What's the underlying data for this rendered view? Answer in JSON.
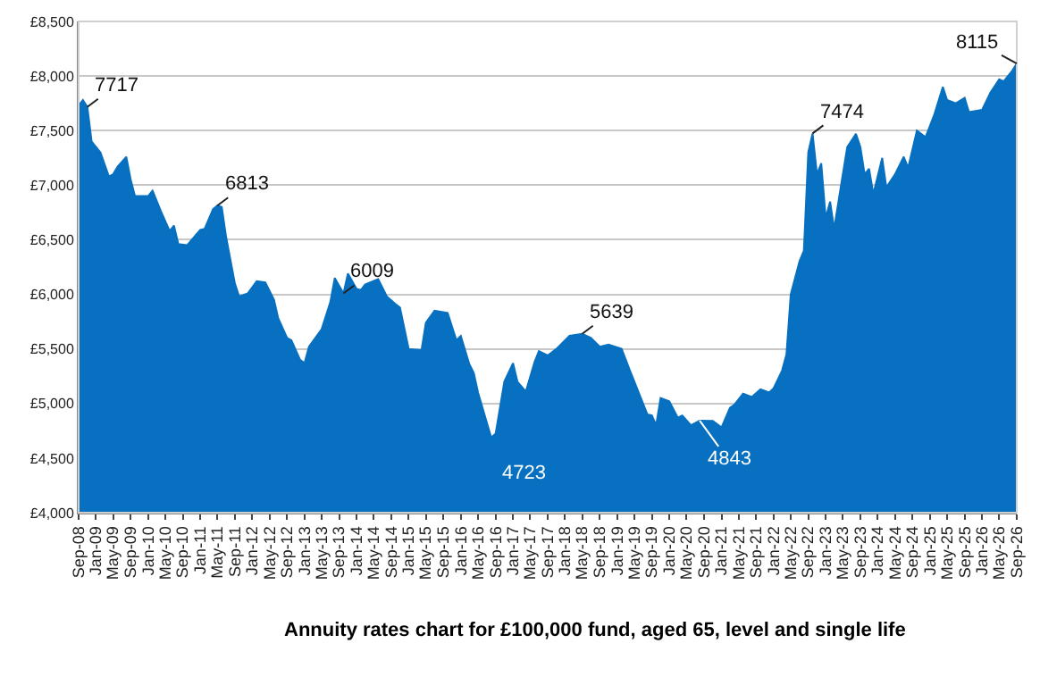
{
  "chart_data": {
    "type": "area",
    "title": "Annuity rates chart for £100,000 fund, aged 65, level and single life",
    "series": [
      {
        "color": "#0770c0",
        "x": [
          "2008-09",
          "2008-10",
          "2008-11",
          "2008-12",
          "2009-02",
          "2009-04",
          "2009-05",
          "2009-06",
          "2009-08",
          "2009-09",
          "2009-10",
          "2010-01",
          "2010-02",
          "2010-04",
          "2010-06",
          "2010-07",
          "2010-08",
          "2010-10",
          "2011-01",
          "2011-02",
          "2011-04",
          "2011-05",
          "2011-06",
          "2011-07",
          "2011-09",
          "2011-10",
          "2011-12",
          "2012-02",
          "2012-04",
          "2012-06",
          "2012-07",
          "2012-09",
          "2012-10",
          "2012-12",
          "2013-01",
          "2013-02",
          "2013-05",
          "2013-07",
          "2013-08",
          "2013-10",
          "2013-11",
          "2014-01",
          "2014-02",
          "2014-03",
          "2014-06",
          "2014-08",
          "2014-10",
          "2014-11",
          "2015-01",
          "2015-04",
          "2015-05",
          "2015-07",
          "2015-10",
          "2015-12",
          "2016-01",
          "2016-03",
          "2016-04",
          "2016-05",
          "2016-08",
          "2016-09",
          "2016-11",
          "2017-01",
          "2017-02",
          "2017-04",
          "2017-06",
          "2017-07",
          "2017-09",
          "2017-11",
          "2018-02",
          "2018-05",
          "2018-07",
          "2018-09",
          "2018-11",
          "2019-02",
          "2019-04",
          "2019-06",
          "2019-08",
          "2019-09",
          "2019-10",
          "2019-11",
          "2020-01",
          "2020-03",
          "2020-04",
          "2020-06",
          "2020-08",
          "2020-11",
          "2021-01",
          "2021-03",
          "2021-04",
          "2021-06",
          "2021-08",
          "2021-10",
          "2021-12",
          "2022-01",
          "2022-03",
          "2022-04",
          "2022-05",
          "2022-07",
          "2022-08",
          "2022-09",
          "2022-10",
          "2022-11",
          "2022-12",
          "2023-01",
          "2023-02",
          "2023-03",
          "2023-05",
          "2023-06",
          "2023-08",
          "2023-09",
          "2023-10",
          "2023-11",
          "2023-12",
          "2024-02",
          "2024-03",
          "2024-05",
          "2024-07",
          "2024-08",
          "2024-10",
          "2024-12",
          "2025-02",
          "2025-04",
          "2025-05",
          "2025-07",
          "2025-09",
          "2025-10",
          "2026-01",
          "2026-03",
          "2026-05",
          "2026-06",
          "2026-08",
          "2026-09"
        ],
        "values": [
          7730,
          7780,
          7717,
          7400,
          7300,
          7080,
          7100,
          7170,
          7260,
          7050,
          6900,
          6900,
          6950,
          6760,
          6580,
          6630,
          6460,
          6450,
          6590,
          6600,
          6780,
          6813,
          6800,
          6530,
          6100,
          5980,
          6010,
          6120,
          6110,
          5950,
          5780,
          5600,
          5580,
          5400,
          5370,
          5520,
          5680,
          5930,
          6150,
          6009,
          6190,
          6050,
          6040,
          6090,
          6140,
          5980,
          5910,
          5880,
          5500,
          5490,
          5740,
          5850,
          5830,
          5580,
          5620,
          5360,
          5280,
          5100,
          4690,
          4723,
          5200,
          5370,
          5200,
          5110,
          5380,
          5480,
          5440,
          5500,
          5620,
          5639,
          5600,
          5520,
          5540,
          5500,
          5300,
          5100,
          4900,
          4890,
          4800,
          5050,
          5020,
          4870,
          4890,
          4800,
          4843,
          4840,
          4780,
          4960,
          4990,
          5090,
          5060,
          5130,
          5100,
          5140,
          5300,
          5450,
          6000,
          6300,
          6400,
          7300,
          7474,
          7100,
          7200,
          6700,
          6850,
          6600,
          7100,
          7350,
          7470,
          7350,
          7100,
          7150,
          6920,
          7250,
          6980,
          7100,
          7260,
          7160,
          7500,
          7440,
          7650,
          7900,
          7780,
          7750,
          7800,
          7670,
          7690,
          7850,
          7970,
          7950,
          8050,
          8115
        ]
      }
    ],
    "annotations": [
      {
        "text": "7717",
        "x": "2008-11",
        "y": 7717
      },
      {
        "text": "6813",
        "x": "2011-05",
        "y": 6813
      },
      {
        "text": "6009",
        "x": "2013-10",
        "y": 6009
      },
      {
        "text": "4723",
        "x": "2016-09",
        "y": 4723
      },
      {
        "text": "5639",
        "x": "2018-05",
        "y": 5639
      },
      {
        "text": "4843",
        "x": "2020-08",
        "y": 4843
      },
      {
        "text": "7474",
        "x": "2022-10",
        "y": 7474
      },
      {
        "text": "8115",
        "x": "2026-09",
        "y": 8115
      }
    ],
    "xlim": [
      "2008-09",
      "2026-09"
    ],
    "xticks": [
      {
        "value": "2008-09",
        "label": "Sep-08"
      },
      {
        "value": "2009-01",
        "label": "Jan-09"
      },
      {
        "value": "2009-05",
        "label": "May-09"
      },
      {
        "value": "2009-09",
        "label": "Sep-09"
      },
      {
        "value": "2010-01",
        "label": "Jan-10"
      },
      {
        "value": "2010-05",
        "label": "May-10"
      },
      {
        "value": "2010-09",
        "label": "Sep-10"
      },
      {
        "value": "2011-01",
        "label": "Jan-11"
      },
      {
        "value": "2011-05",
        "label": "May-11"
      },
      {
        "value": "2011-09",
        "label": "Sep-11"
      },
      {
        "value": "2012-01",
        "label": "Jan-12"
      },
      {
        "value": "2012-05",
        "label": "May-12"
      },
      {
        "value": "2012-09",
        "label": "Sep-12"
      },
      {
        "value": "2013-01",
        "label": "Jan-13"
      },
      {
        "value": "2013-05",
        "label": "May-13"
      },
      {
        "value": "2013-09",
        "label": "Sep-13"
      },
      {
        "value": "2014-01",
        "label": "Jan-14"
      },
      {
        "value": "2014-05",
        "label": "May-14"
      },
      {
        "value": "2014-09",
        "label": "Sep-14"
      },
      {
        "value": "2015-01",
        "label": "Jan-15"
      },
      {
        "value": "2015-05",
        "label": "May-15"
      },
      {
        "value": "2015-09",
        "label": "Sep-15"
      },
      {
        "value": "2016-01",
        "label": "Jan-16"
      },
      {
        "value": "2016-05",
        "label": "May-16"
      },
      {
        "value": "2016-09",
        "label": "Sep-16"
      },
      {
        "value": "2017-01",
        "label": "Jan-17"
      },
      {
        "value": "2017-05",
        "label": "May-17"
      },
      {
        "value": "2017-09",
        "label": "Sep-17"
      },
      {
        "value": "2018-01",
        "label": "Jan-18"
      },
      {
        "value": "2018-05",
        "label": "May-18"
      },
      {
        "value": "2018-09",
        "label": "Sep-18"
      },
      {
        "value": "2019-01",
        "label": "Jan-19"
      },
      {
        "value": "2019-05",
        "label": "May-19"
      },
      {
        "value": "2019-09",
        "label": "Sep-19"
      },
      {
        "value": "2020-01",
        "label": "Jan-20"
      },
      {
        "value": "2020-05",
        "label": "May-20"
      },
      {
        "value": "2020-09",
        "label": "Sep-20"
      },
      {
        "value": "2021-01",
        "label": "Jan-21"
      },
      {
        "value": "2021-05",
        "label": "May-21"
      },
      {
        "value": "2021-09",
        "label": "Sep-21"
      },
      {
        "value": "2022-01",
        "label": "Jan-22"
      },
      {
        "value": "2022-05",
        "label": "May-22"
      },
      {
        "value": "2022-09",
        "label": "Sep-22"
      },
      {
        "value": "2023-01",
        "label": "Jan-23"
      },
      {
        "value": "2023-05",
        "label": "May-23"
      },
      {
        "value": "2023-09",
        "label": "Sep-23"
      },
      {
        "value": "2024-01",
        "label": "Jan-24"
      },
      {
        "value": "2024-05",
        "label": "May-24"
      },
      {
        "value": "2024-09",
        "label": "Sep-24"
      },
      {
        "value": "2025-01",
        "label": "Jan-25"
      },
      {
        "value": "2025-05",
        "label": "May-25"
      },
      {
        "value": "2025-09",
        "label": "Sep-25"
      },
      {
        "value": "2026-01",
        "label": "Jan-26"
      },
      {
        "value": "2026-05",
        "label": "May-26"
      },
      {
        "value": "2026-09",
        "label": "Sep-26"
      }
    ],
    "ylim": [
      4000,
      8500
    ],
    "yticks": [
      {
        "value": 4000,
        "label": "£4,000"
      },
      {
        "value": 4500,
        "label": "£4,500"
      },
      {
        "value": 5000,
        "label": "£5,000"
      },
      {
        "value": 5500,
        "label": "£5,500"
      },
      {
        "value": 6000,
        "label": "£6,000"
      },
      {
        "value": 6500,
        "label": "£6,500"
      },
      {
        "value": 7000,
        "label": "£7,000"
      },
      {
        "value": 7500,
        "label": "£7,500"
      },
      {
        "value": 8000,
        "label": "£8,000"
      },
      {
        "value": 8500,
        "label": "£8,500"
      }
    ],
    "grid": "y"
  }
}
